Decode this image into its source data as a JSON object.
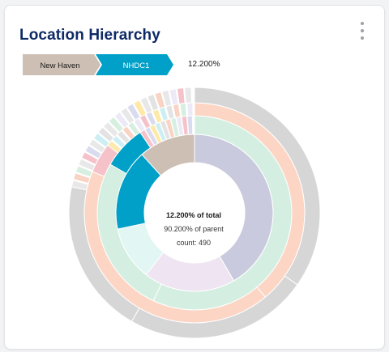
{
  "widget": {
    "title": "Location Hierarchy",
    "menu_icon": "more-vertical-icon"
  },
  "breadcrumb": {
    "items": [
      {
        "label": "New Haven",
        "color": "#cdbfb4",
        "text_color": "#1a1a1a"
      },
      {
        "label": "NHDC1",
        "color": "#00a0c8",
        "text_color": "#ffffff"
      }
    ],
    "percent": "12.200%"
  },
  "sunburst_center": {
    "of_total": "12.200% of total",
    "of_parent": "90.200% of parent",
    "count": "count: 490"
  },
  "colors": {
    "highlight": "#00a0c8",
    "parent": "#cdbfb4",
    "faded_grey": "#d6d6d6",
    "faded_peach": "#fcd5c4",
    "faded_mint": "#d4efe1",
    "faded_lavender": "#c9cadd"
  }
}
